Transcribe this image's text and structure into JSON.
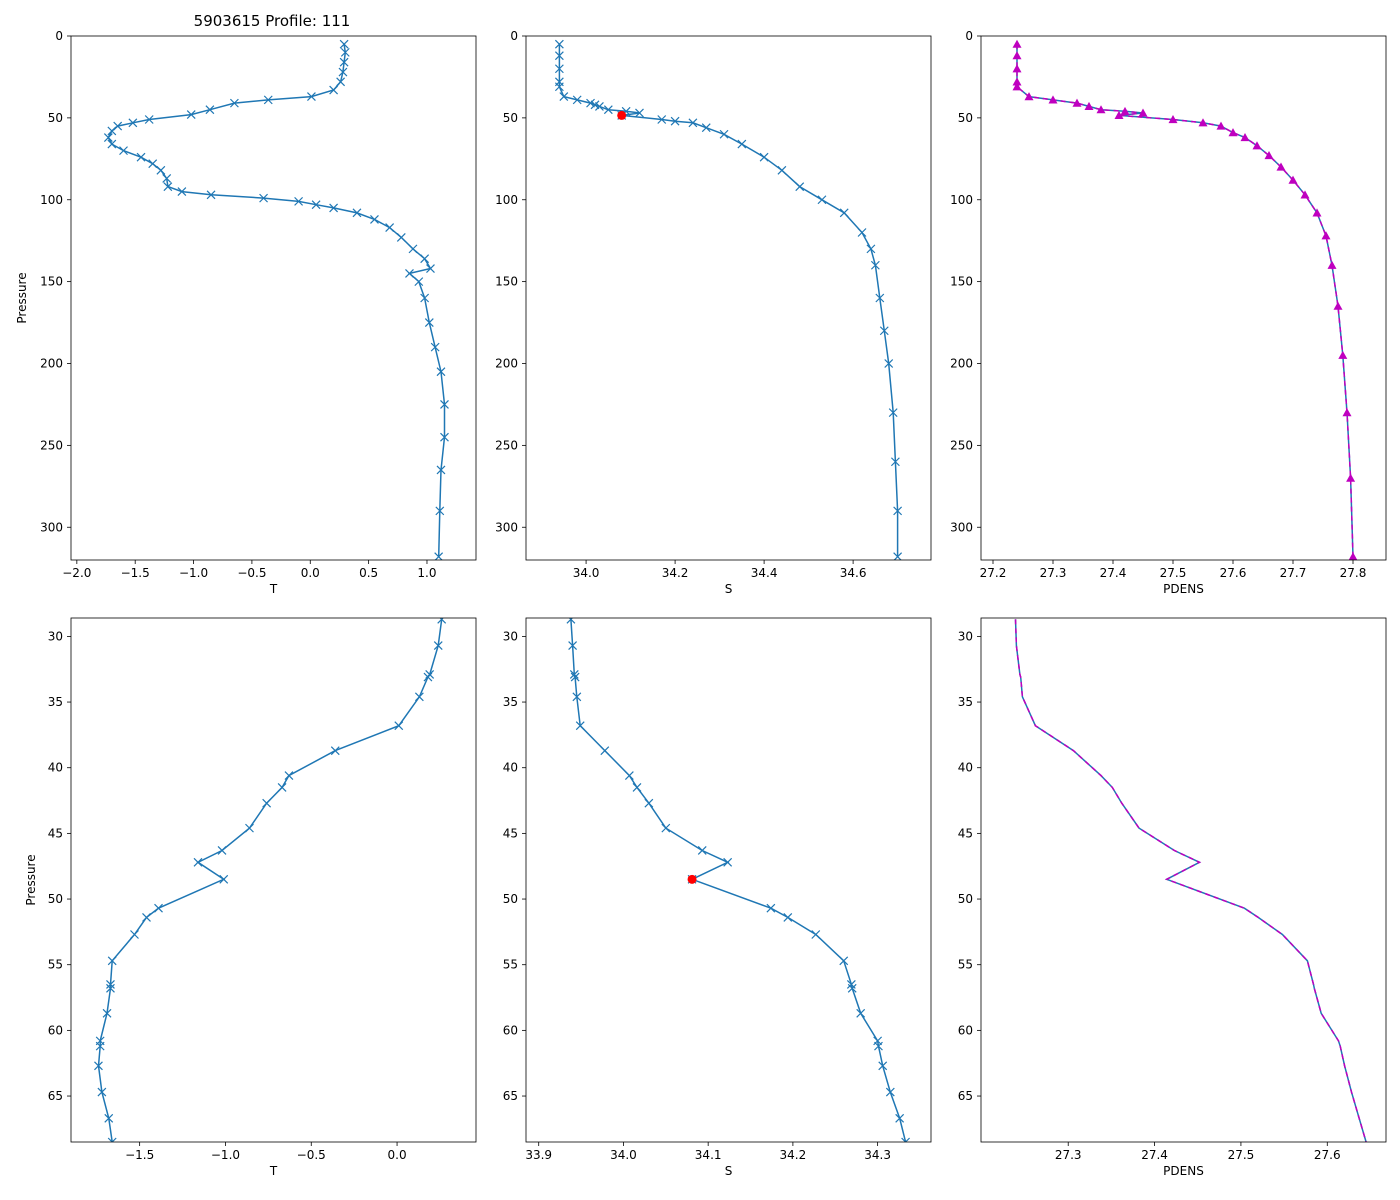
{
  "figure_title": "5903615 Profile: 111",
  "colors": {
    "line": "#1f77b4",
    "pdens": "#bf00bf",
    "highlight": "#ff0000"
  },
  "chart_data": [
    {
      "id": "top-temperature",
      "type": "line",
      "xlabel": "T",
      "ylabel": "Pressure",
      "xlim": [
        -2.05,
        1.42
      ],
      "ylim": [
        320,
        0
      ],
      "y_inverted": true,
      "xticks": [
        -2.0,
        -1.5,
        -1.0,
        -0.5,
        0.0,
        0.5,
        1.0
      ],
      "xtick_labels": [
        "−2.0",
        "−1.5",
        "−1.0",
        "−0.5",
        "0.0",
        "0.5",
        "1.0"
      ],
      "yticks": [
        0,
        50,
        100,
        150,
        200,
        250,
        300
      ],
      "ytick_labels": [
        "0",
        "50",
        "100",
        "150",
        "200",
        "250",
        "300"
      ],
      "marker": "x",
      "series": [
        {
          "name": "T",
          "points": [
            [
              0.29,
              5
            ],
            [
              0.3,
              10
            ],
            [
              0.29,
              16
            ],
            [
              0.28,
              22
            ],
            [
              0.26,
              28
            ],
            [
              0.2,
              33
            ],
            [
              0.01,
              37
            ],
            [
              -0.36,
              39
            ],
            [
              -0.65,
              41
            ],
            [
              -0.86,
              45
            ],
            [
              -1.02,
              48
            ],
            [
              -1.38,
              51
            ],
            [
              -1.52,
              53
            ],
            [
              -1.65,
              55
            ],
            [
              -1.7,
              58
            ],
            [
              -1.73,
              62
            ],
            [
              -1.7,
              66
            ],
            [
              -1.6,
              70
            ],
            [
              -1.45,
              74
            ],
            [
              -1.35,
              78
            ],
            [
              -1.28,
              82
            ],
            [
              -1.23,
              87
            ],
            [
              -1.22,
              92
            ],
            [
              -1.1,
              95
            ],
            [
              -0.85,
              97
            ],
            [
              -0.4,
              99
            ],
            [
              -0.1,
              101
            ],
            [
              0.05,
              103
            ],
            [
              0.2,
              105
            ],
            [
              0.4,
              108
            ],
            [
              0.55,
              112
            ],
            [
              0.68,
              117
            ],
            [
              0.78,
              123
            ],
            [
              0.88,
              130
            ],
            [
              0.98,
              136
            ],
            [
              1.03,
              142
            ],
            [
              0.85,
              145
            ],
            [
              0.93,
              150
            ],
            [
              0.98,
              160
            ],
            [
              1.02,
              175
            ],
            [
              1.07,
              190
            ],
            [
              1.12,
              205
            ],
            [
              1.15,
              225
            ],
            [
              1.15,
              245
            ],
            [
              1.12,
              265
            ],
            [
              1.11,
              290
            ],
            [
              1.1,
              318
            ]
          ]
        }
      ]
    },
    {
      "id": "top-salinity",
      "type": "line",
      "xlabel": "S",
      "ylabel": "",
      "xlim": [
        33.865,
        34.775
      ],
      "ylim": [
        320,
        0
      ],
      "y_inverted": true,
      "xticks": [
        34.0,
        34.2,
        34.4,
        34.6
      ],
      "xtick_labels": [
        "34.0",
        "34.2",
        "34.4",
        "34.6"
      ],
      "yticks": [
        0,
        50,
        100,
        150,
        200,
        250,
        300
      ],
      "ytick_labels": [
        "0",
        "50",
        "100",
        "150",
        "200",
        "250",
        "300"
      ],
      "marker": "x",
      "series": [
        {
          "name": "S",
          "points": [
            [
              33.94,
              5
            ],
            [
              33.94,
              12
            ],
            [
              33.94,
              20
            ],
            [
              33.94,
              28
            ],
            [
              33.94,
              31
            ],
            [
              33.95,
              37
            ],
            [
              33.98,
              39
            ],
            [
              34.01,
              41
            ],
            [
              34.02,
              42
            ],
            [
              34.03,
              43
            ],
            [
              34.05,
              45
            ],
            [
              34.09,
              46
            ],
            [
              34.12,
              47
            ],
            [
              34.08,
              48.5
            ],
            [
              34.17,
              51
            ],
            [
              34.2,
              52
            ],
            [
              34.24,
              53
            ],
            [
              34.27,
              56
            ],
            [
              34.31,
              60
            ],
            [
              34.35,
              66
            ],
            [
              34.4,
              74
            ],
            [
              34.44,
              82
            ],
            [
              34.48,
              92
            ],
            [
              34.53,
              100
            ],
            [
              34.58,
              108
            ],
            [
              34.62,
              120
            ],
            [
              34.64,
              130
            ],
            [
              34.65,
              140
            ],
            [
              34.66,
              160
            ],
            [
              34.67,
              180
            ],
            [
              34.68,
              200
            ],
            [
              34.69,
              230
            ],
            [
              34.695,
              260
            ],
            [
              34.7,
              290
            ],
            [
              34.7,
              318
            ]
          ]
        }
      ],
      "highlight_point": [
        34.08,
        48.5
      ]
    },
    {
      "id": "top-pdens",
      "type": "line",
      "xlabel": "PDENS",
      "ylabel": "",
      "xlim": [
        27.18,
        27.855
      ],
      "ylim": [
        320,
        0
      ],
      "y_inverted": true,
      "xticks": [
        27.2,
        27.3,
        27.4,
        27.5,
        27.6,
        27.7,
        27.8
      ],
      "xtick_labels": [
        "27.2",
        "27.3",
        "27.4",
        "27.5",
        "27.6",
        "27.7",
        "27.8"
      ],
      "yticks": [
        0,
        50,
        100,
        150,
        200,
        250,
        300
      ],
      "ytick_labels": [
        "0",
        "50",
        "100",
        "150",
        "200",
        "250",
        "300"
      ],
      "marker": "triangle",
      "series": [
        {
          "name": "PDENS",
          "points": [
            [
              27.24,
              5
            ],
            [
              27.24,
              12
            ],
            [
              27.24,
              20
            ],
            [
              27.24,
              28
            ],
            [
              27.24,
              31
            ],
            [
              27.26,
              37
            ],
            [
              27.3,
              39
            ],
            [
              27.34,
              41
            ],
            [
              27.36,
              43
            ],
            [
              27.38,
              45
            ],
            [
              27.42,
              46
            ],
            [
              27.45,
              47
            ],
            [
              27.41,
              48.5
            ],
            [
              27.5,
              51
            ],
            [
              27.55,
              53
            ],
            [
              27.58,
              55
            ],
            [
              27.6,
              59
            ],
            [
              27.62,
              62
            ],
            [
              27.64,
              67
            ],
            [
              27.66,
              73
            ],
            [
              27.68,
              80
            ],
            [
              27.7,
              88
            ],
            [
              27.72,
              97
            ],
            [
              27.74,
              108
            ],
            [
              27.755,
              122
            ],
            [
              27.765,
              140
            ],
            [
              27.775,
              165
            ],
            [
              27.783,
              195
            ],
            [
              27.79,
              230
            ],
            [
              27.796,
              270
            ],
            [
              27.8,
              318
            ]
          ]
        }
      ]
    },
    {
      "id": "bottom-temperature",
      "type": "line",
      "xlabel": "T",
      "ylabel": "Pressure",
      "xlim": [
        -1.9,
        0.46
      ],
      "ylim": [
        68.5,
        28.6
      ],
      "y_inverted": true,
      "xticks": [
        -1.5,
        -1.0,
        -0.5,
        0.0
      ],
      "xtick_labels": [
        "−1.5",
        "−1.0",
        "−0.5",
        "0.0"
      ],
      "yticks": [
        30,
        35,
        40,
        45,
        50,
        55,
        60,
        65
      ],
      "ytick_labels": [
        "30",
        "35",
        "40",
        "45",
        "50",
        "55",
        "60",
        "65"
      ],
      "marker": "x",
      "series": [
        {
          "name": "T",
          "points": [
            [
              0.26,
              28.7
            ],
            [
              0.24,
              30.7
            ],
            [
              0.19,
              32.9
            ],
            [
              0.18,
              33.1
            ],
            [
              0.13,
              34.6
            ],
            [
              0.01,
              36.8
            ],
            [
              -0.36,
              38.7
            ],
            [
              -0.63,
              40.6
            ],
            [
              -0.67,
              41.5
            ],
            [
              -0.76,
              42.7
            ],
            [
              -0.86,
              44.6
            ],
            [
              -1.02,
              46.3
            ],
            [
              -1.16,
              47.2
            ],
            [
              -1.01,
              48.5
            ],
            [
              -1.39,
              50.7
            ],
            [
              -1.46,
              51.4
            ],
            [
              -1.53,
              52.7
            ],
            [
              -1.66,
              54.7
            ],
            [
              -1.67,
              56.5
            ],
            [
              -1.67,
              56.8
            ],
            [
              -1.69,
              58.7
            ],
            [
              -1.73,
              60.8
            ],
            [
              -1.73,
              61.2
            ],
            [
              -1.74,
              62.7
            ],
            [
              -1.72,
              64.7
            ],
            [
              -1.68,
              66.7
            ],
            [
              -1.66,
              68.5
            ]
          ]
        }
      ]
    },
    {
      "id": "bottom-salinity",
      "type": "line",
      "xlabel": "S",
      "ylabel": "",
      "xlim": [
        33.885,
        34.363
      ],
      "ylim": [
        68.5,
        28.6
      ],
      "y_inverted": true,
      "xticks": [
        33.9,
        34.0,
        34.1,
        34.2,
        34.3
      ],
      "xtick_labels": [
        "33.9",
        "34.0",
        "34.1",
        "34.2",
        "34.3"
      ],
      "yticks": [
        30,
        35,
        40,
        45,
        50,
        55,
        60,
        65
      ],
      "ytick_labels": [
        "30",
        "35",
        "40",
        "45",
        "50",
        "55",
        "60",
        "65"
      ],
      "marker": "x",
      "series": [
        {
          "name": "S",
          "points": [
            [
              33.938,
              28.7
            ],
            [
              33.94,
              30.7
            ],
            [
              33.942,
              32.9
            ],
            [
              33.943,
              33.1
            ],
            [
              33.945,
              34.6
            ],
            [
              33.949,
              36.8
            ],
            [
              33.978,
              38.7
            ],
            [
              34.007,
              40.6
            ],
            [
              34.016,
              41.5
            ],
            [
              34.03,
              42.7
            ],
            [
              34.05,
              44.6
            ],
            [
              34.093,
              46.3
            ],
            [
              34.123,
              47.2
            ],
            [
              34.081,
              48.5
            ],
            [
              34.174,
              50.7
            ],
            [
              34.194,
              51.4
            ],
            [
              34.227,
              52.7
            ],
            [
              34.26,
              54.7
            ],
            [
              34.269,
              56.5
            ],
            [
              34.27,
              56.8
            ],
            [
              34.28,
              58.7
            ],
            [
              34.3,
              60.8
            ],
            [
              34.301,
              61.2
            ],
            [
              34.306,
              62.7
            ],
            [
              34.315,
              64.7
            ],
            [
              34.326,
              66.7
            ],
            [
              34.333,
              68.5
            ]
          ]
        }
      ],
      "highlight_point": [
        34.081,
        48.5
      ]
    },
    {
      "id": "bottom-pdens",
      "type": "line",
      "xlabel": "PDENS",
      "ylabel": "",
      "xlim": [
        27.199,
        27.668
      ],
      "ylim": [
        68.5,
        28.6
      ],
      "y_inverted": true,
      "xticks": [
        27.3,
        27.4,
        27.5,
        27.6
      ],
      "xtick_labels": [
        "27.3",
        "27.4",
        "27.5",
        "27.6"
      ],
      "yticks": [
        30,
        35,
        40,
        45,
        50,
        55,
        60,
        65
      ],
      "ytick_labels": [
        "30",
        "35",
        "40",
        "45",
        "50",
        "55",
        "60",
        "65"
      ],
      "marker": "none",
      "series": [
        {
          "name": "PDENS",
          "points": [
            [
              27.239,
              28.7
            ],
            [
              27.24,
              30.7
            ],
            [
              27.244,
              32.9
            ],
            [
              27.245,
              33.1
            ],
            [
              27.247,
              34.6
            ],
            [
              27.262,
              36.8
            ],
            [
              27.306,
              38.7
            ],
            [
              27.338,
              40.6
            ],
            [
              27.351,
              41.5
            ],
            [
              27.362,
              42.7
            ],
            [
              27.382,
              44.6
            ],
            [
              27.423,
              46.3
            ],
            [
              27.452,
              47.2
            ],
            [
              27.414,
              48.5
            ],
            [
              27.504,
              50.7
            ],
            [
              27.52,
              51.4
            ],
            [
              27.548,
              52.7
            ],
            [
              27.577,
              54.7
            ],
            [
              27.584,
              56.5
            ],
            [
              27.585,
              56.8
            ],
            [
              27.593,
              58.7
            ],
            [
              27.613,
              60.8
            ],
            [
              27.615,
              61.2
            ],
            [
              27.62,
              62.7
            ],
            [
              27.628,
              64.7
            ],
            [
              27.637,
              66.7
            ],
            [
              27.645,
              68.5
            ]
          ]
        }
      ]
    }
  ]
}
